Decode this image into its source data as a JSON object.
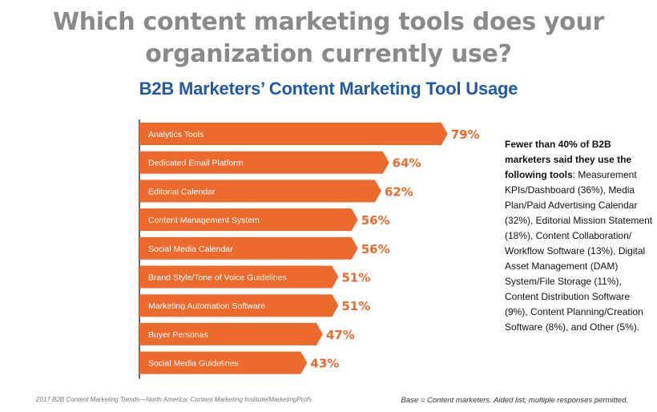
{
  "header": {
    "title_line1": "Which content marketing tools does your",
    "title_line2": "organization currently use?",
    "chart_title": "B2B Marketers’ Content Marketing Tool Usage"
  },
  "colors": {
    "bar": "#ec6a2c",
    "value_label": "#ec6a2c",
    "axis": "#333333"
  },
  "chart_data": {
    "type": "bar",
    "orientation": "horizontal",
    "title": "B2B Marketers’ Content Marketing Tool Usage",
    "categories": [
      "Analytics Tools",
      "Dedicated Email Platform",
      "Editorial Calendar",
      "Content Management System",
      "Social Media Calendar",
      "Brand Style/Tone of Voice Guidelines",
      "Marketing Automation Software",
      "Buyer Personas",
      "Social Media Guidelines"
    ],
    "values": [
      79,
      64,
      62,
      56,
      56,
      51,
      51,
      47,
      43
    ],
    "value_labels": [
      "79%",
      "64%",
      "62%",
      "56%",
      "56%",
      "51%",
      "51%",
      "47%",
      "43%"
    ],
    "xlim": [
      0,
      100
    ],
    "unit": "%",
    "grid": false
  },
  "note": {
    "bold": "Fewer than 40% of B2B marketers said they use the following tools",
    "text": ": Measurement KPIs/Dashboard (36%), Media Plan/Paid Advertising Calendar (32%), Editorial Mission Statement (18%), Content Collaboration/ Workflow Software (13%), Digital Asset Management (DAM) System/File Storage (11%), Content Distribution Software (9%), Content Planning/Creation Software (8%), and Other (5%)."
  },
  "footer": {
    "source": "2017 B2B Content Marketing Trends—North America: Content Marketing Institute/MarketingProfs",
    "base": "Base = Content marketers. Aided list; multiple responses permitted."
  }
}
